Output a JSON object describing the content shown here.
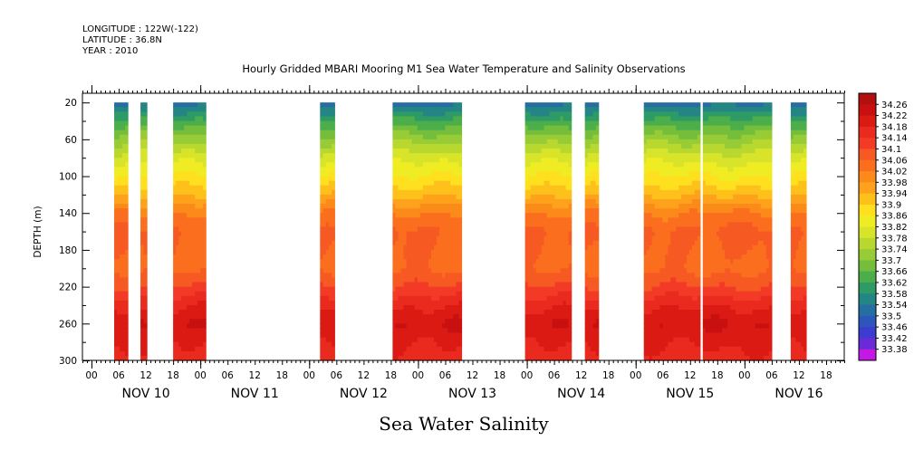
{
  "header": {
    "longitude_line": "LONGITUDE : 122W(-122)",
    "latitude_line": "LATITUDE : 36.8N",
    "year_line": "YEAR : 2010"
  },
  "chart_data": {
    "type": "heatmap",
    "title": "Hourly Gridded MBARI Mooring M1 Sea Water Temperature and Salinity Observations",
    "bottom_title": "Sea Water Salinity",
    "ylabel": "DEPTH (m)",
    "y_inverted": true,
    "ylim": [
      300,
      10
    ],
    "y_ticks": [
      20,
      60,
      100,
      140,
      180,
      220,
      260,
      300
    ],
    "x_units": "hours since 2010-11-10 00:00",
    "xlim": [
      -2,
      166
    ],
    "x_hour_ticks": [
      {
        "x": 0,
        "label": "00"
      },
      {
        "x": 6,
        "label": "06"
      },
      {
        "x": 12,
        "label": "12"
      },
      {
        "x": 18,
        "label": "18"
      },
      {
        "x": 24,
        "label": "00"
      },
      {
        "x": 30,
        "label": "06"
      },
      {
        "x": 36,
        "label": "12"
      },
      {
        "x": 42,
        "label": "18"
      },
      {
        "x": 48,
        "label": "00"
      },
      {
        "x": 54,
        "label": "06"
      },
      {
        "x": 60,
        "label": "12"
      },
      {
        "x": 66,
        "label": "18"
      },
      {
        "x": 72,
        "label": "00"
      },
      {
        "x": 78,
        "label": "06"
      },
      {
        "x": 84,
        "label": "12"
      },
      {
        "x": 90,
        "label": "18"
      },
      {
        "x": 96,
        "label": "00"
      },
      {
        "x": 102,
        "label": "06"
      },
      {
        "x": 108,
        "label": "12"
      },
      {
        "x": 114,
        "label": "18"
      },
      {
        "x": 120,
        "label": "00"
      },
      {
        "x": 126,
        "label": "06"
      },
      {
        "x": 132,
        "label": "12"
      },
      {
        "x": 138,
        "label": "18"
      },
      {
        "x": 144,
        "label": "00"
      },
      {
        "x": 150,
        "label": "06"
      },
      {
        "x": 156,
        "label": "12"
      },
      {
        "x": 162,
        "label": "18"
      }
    ],
    "x_day_labels": [
      {
        "x": 12,
        "label": "NOV 10"
      },
      {
        "x": 36,
        "label": "NOV 11"
      },
      {
        "x": 60,
        "label": "NOV 12"
      },
      {
        "x": 84,
        "label": "NOV 13"
      },
      {
        "x": 108,
        "label": "NOV 14"
      },
      {
        "x": 132,
        "label": "NOV 15"
      },
      {
        "x": 156,
        "label": "NOV 16"
      }
    ],
    "data_segments": [
      {
        "start": 5.0,
        "end": 8.0
      },
      {
        "start": 10.8,
        "end": 12.2
      },
      {
        "start": 18.0,
        "end": 25.2
      },
      {
        "start": 50.4,
        "end": 53.6
      },
      {
        "start": 66.4,
        "end": 81.6
      },
      {
        "start": 95.6,
        "end": 105.8
      },
      {
        "start": 108.8,
        "end": 111.8
      },
      {
        "start": 121.8,
        "end": 134.2
      },
      {
        "start": 134.8,
        "end": 150.0
      },
      {
        "start": 154.2,
        "end": 157.6
      }
    ],
    "depths": [
      20,
      40,
      60,
      80,
      100,
      120,
      140,
      160,
      180,
      200,
      220,
      240,
      260,
      280,
      300
    ],
    "profile_salinity": [
      33.52,
      33.63,
      33.72,
      33.8,
      33.86,
      33.93,
      34.02,
      34.07,
      34.06,
      34.05,
      34.1,
      34.17,
      34.22,
      34.19,
      34.16
    ],
    "colorbar": {
      "labels": [
        "34.26",
        "34.22",
        "34.18",
        "34.14",
        "34.1",
        "34.06",
        "34.02",
        "33.98",
        "33.94",
        "33.9",
        "33.86",
        "33.82",
        "33.78",
        "33.74",
        "33.7",
        "33.66",
        "33.62",
        "33.58",
        "33.54",
        "33.5",
        "33.46",
        "33.42",
        "33.38"
      ],
      "colors": [
        "#b01010",
        "#c81010",
        "#dc1a14",
        "#ea2a1e",
        "#f23a26",
        "#f65a22",
        "#fa6e1e",
        "#fb8a1a",
        "#fda21a",
        "#fec01a",
        "#fee01e",
        "#f0ec24",
        "#d8e42a",
        "#b8d830",
        "#98cc36",
        "#74be3c",
        "#4cae4a",
        "#2e9a66",
        "#248684",
        "#246ea2",
        "#2c56bc",
        "#3c3cd0",
        "#6a2ad8",
        "#c418e4"
      ]
    }
  }
}
